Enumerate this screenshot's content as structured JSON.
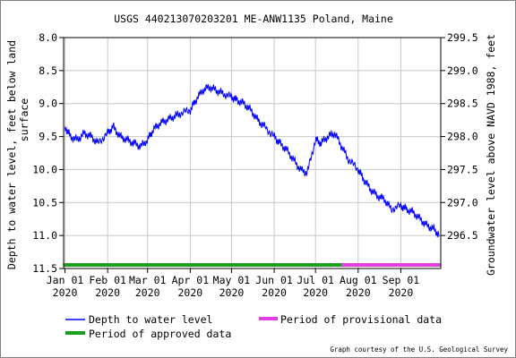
{
  "chart_data": {
    "type": "line",
    "title": "USGS 440213070203201 ME-ANW1135 Poland, Maine",
    "ylabel_left_line1": "Depth to water level, feet below land",
    "ylabel_left_line2": "surface",
    "ylabel_right": "Groundwater level above NAVD 1988, feet",
    "ylim_left": [
      11.5,
      8.0
    ],
    "ylim_right": [
      296.0,
      299.5
    ],
    "yaxis_left_inverted": true,
    "xlim": [
      "2019-12-31",
      "2020-09-30"
    ],
    "left_ticks": [
      "8.0",
      "8.5",
      "9.0",
      "9.5",
      "10.0",
      "10.5",
      "11.0",
      "11.5"
    ],
    "right_ticks": [
      "299.5",
      "299.0",
      "298.5",
      "298.0",
      "297.5",
      "297.0",
      "296.5"
    ],
    "x_ticks": [
      {
        "date": "2020-01-01",
        "line1": "Jan 01",
        "line2": "2020"
      },
      {
        "date": "2020-02-01",
        "line1": "Feb 01",
        "line2": "2020"
      },
      {
        "date": "2020-03-01",
        "line1": "Mar 01",
        "line2": "2020"
      },
      {
        "date": "2020-04-01",
        "line1": "Apr 01",
        "line2": "2020"
      },
      {
        "date": "2020-05-01",
        "line1": "May 01",
        "line2": "2020"
      },
      {
        "date": "2020-06-01",
        "line1": "Jun 01",
        "line2": "2020"
      },
      {
        "date": "2020-07-01",
        "line1": "Jul 01",
        "line2": "2020"
      },
      {
        "date": "2020-08-01",
        "line1": "Aug 01",
        "line2": "2020"
      },
      {
        "date": "2020-09-01",
        "line1": "Sep 01",
        "line2": "2020"
      }
    ],
    "grid": true,
    "series": [
      {
        "name": "Depth to water level",
        "color": "#0000ff",
        "x": [
          "2020-01-01",
          "2020-01-05",
          "2020-01-10",
          "2020-01-15",
          "2020-01-20",
          "2020-01-25",
          "2020-02-01",
          "2020-02-05",
          "2020-02-10",
          "2020-02-15",
          "2020-02-20",
          "2020-02-25",
          "2020-03-01",
          "2020-03-05",
          "2020-03-10",
          "2020-03-15",
          "2020-03-20",
          "2020-03-25",
          "2020-04-01",
          "2020-04-05",
          "2020-04-10",
          "2020-04-15",
          "2020-04-20",
          "2020-04-25",
          "2020-05-01",
          "2020-05-05",
          "2020-05-10",
          "2020-05-15",
          "2020-05-20",
          "2020-05-25",
          "2020-06-01",
          "2020-06-05",
          "2020-06-10",
          "2020-06-15",
          "2020-06-20",
          "2020-06-25",
          "2020-07-01",
          "2020-07-05",
          "2020-07-10",
          "2020-07-15",
          "2020-07-20",
          "2020-07-25",
          "2020-08-01",
          "2020-08-05",
          "2020-08-10",
          "2020-08-15",
          "2020-08-20",
          "2020-08-25",
          "2020-09-01",
          "2020-09-05",
          "2020-09-10",
          "2020-09-15",
          "2020-09-20",
          "2020-09-25",
          "2020-09-29"
        ],
        "y": [
          9.35,
          9.5,
          9.55,
          9.45,
          9.5,
          9.6,
          9.45,
          9.35,
          9.5,
          9.55,
          9.6,
          9.65,
          9.55,
          9.4,
          9.3,
          9.25,
          9.2,
          9.15,
          9.1,
          8.95,
          8.8,
          8.75,
          8.8,
          8.85,
          8.9,
          8.95,
          9.0,
          9.1,
          9.25,
          9.35,
          9.5,
          9.6,
          9.7,
          9.85,
          10.0,
          10.05,
          9.55,
          9.6,
          9.5,
          9.45,
          9.65,
          9.85,
          10.0,
          10.15,
          10.3,
          10.4,
          10.45,
          10.6,
          10.55,
          10.6,
          10.65,
          10.75,
          10.85,
          10.9,
          11.0
        ]
      }
    ],
    "approval_periods": [
      {
        "label": "Period of approved data",
        "color": "#1e9e1e",
        "start": "2019-12-31",
        "end": "2020-07-20"
      },
      {
        "label": "Period of provisional data",
        "color": "#e040e0",
        "start": "2020-07-20",
        "end": "2020-09-30"
      }
    ]
  },
  "legend": {
    "items": [
      {
        "label": "Depth to water level",
        "color": "#0000ff"
      },
      {
        "label": "Period of provisional data",
        "color": "#e040e0"
      },
      {
        "label": "Period of approved data",
        "color": "#1e9e1e"
      }
    ]
  },
  "footer": {
    "credit": "Graph courtesy of the U.S. Geological Survey"
  }
}
